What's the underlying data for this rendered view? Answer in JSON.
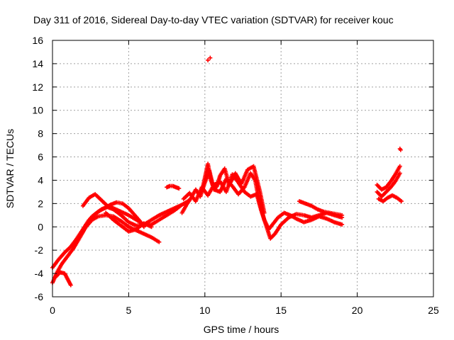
{
  "chart_data": {
    "type": "scatter",
    "title": "Day 311 of 2016, Sidereal Day-to-day VTEC variation (SDTVAR) for receiver kouc",
    "xlabel": "GPS time / hours",
    "ylabel": "SDTVAR / TECUs",
    "xlim": [
      0,
      25
    ],
    "ylim": [
      -6,
      16
    ],
    "xticks": [
      "0",
      "5",
      "10",
      "15",
      "20",
      "25"
    ],
    "yticks": [
      "-6",
      "-4",
      "-2",
      "0",
      "2",
      "4",
      "6",
      "8",
      "10",
      "12",
      "14",
      "16"
    ],
    "grid": true,
    "marker": "+",
    "series": [
      {
        "name": "SDTVAR",
        "color": "#ff0000",
        "tracks": [
          {
            "x": [
              0.0,
              0.3,
              0.6,
              1.0,
              1.4,
              1.8,
              2.2,
              2.6,
              3.0,
              3.5,
              4.0,
              4.5,
              5.0,
              5.5,
              6.0,
              6.5,
              7.0
            ],
            "y": [
              -4.8,
              -3.9,
              -3.2,
              -2.5,
              -1.8,
              -0.9,
              0.0,
              0.6,
              0.9,
              1.0,
              0.9,
              0.5,
              0.0,
              -0.3,
              -0.6,
              -0.9,
              -1.3
            ]
          },
          {
            "x": [
              0.0,
              0.4,
              0.8,
              1.2,
              1.6,
              2.0,
              2.4,
              2.8,
              3.2,
              3.6,
              4.0,
              4.5,
              5.0,
              5.5,
              6.0,
              6.5,
              7.0,
              7.5,
              8.0,
              8.5
            ],
            "y": [
              -3.5,
              -2.8,
              -2.2,
              -1.7,
              -1.0,
              -0.2,
              0.6,
              1.1,
              1.5,
              1.7,
              1.5,
              1.0,
              0.4,
              0.1,
              0.2,
              0.6,
              1.0,
              1.3,
              1.6,
              1.9
            ]
          },
          {
            "x": [
              0.2,
              0.5,
              0.8,
              1.0,
              1.2
            ],
            "y": [
              -4.3,
              -3.9,
              -4.0,
              -4.5,
              -5.0
            ]
          },
          {
            "x": [
              2.0,
              2.4,
              2.8,
              3.2,
              3.6,
              4.0,
              4.5,
              5.0,
              5.5,
              6.0,
              6.5,
              7.0,
              7.5,
              8.0,
              8.5,
              9.0
            ],
            "y": [
              1.8,
              2.5,
              2.8,
              2.3,
              1.8,
              1.6,
              1.3,
              1.0,
              0.6,
              0.2,
              0.2,
              0.6,
              1.0,
              1.4,
              1.9,
              2.3
            ]
          },
          {
            "x": [
              2.2,
              2.6,
              3.0,
              3.4,
              3.8,
              4.2,
              4.6,
              5.0,
              5.4,
              5.8,
              6.0
            ],
            "y": [
              0.2,
              0.9,
              1.3,
              1.6,
              1.9,
              2.1,
              2.0,
              1.6,
              1.0,
              0.4,
              0.0
            ]
          },
          {
            "x": [
              3.5,
              4.0,
              4.5,
              5.0,
              5.5,
              6.0,
              6.5
            ],
            "y": [
              1.2,
              0.6,
              0.1,
              -0.4,
              -0.2,
              0.3,
              0.0
            ]
          },
          {
            "x": [
              7.5,
              7.7,
              7.9,
              8.1,
              8.3
            ],
            "y": [
              3.4,
              3.5,
              3.5,
              3.4,
              3.3
            ]
          },
          {
            "x": [
              8.5,
              8.8,
              9.1,
              9.4,
              9.7,
              10.0,
              10.3,
              10.6,
              11.0,
              11.4,
              11.8,
              12.2,
              12.6,
              13.0,
              13.3,
              13.6,
              13.9,
              14.2,
              14.5,
              14.8,
              15.2,
              15.6,
              16.0,
              16.5,
              17.0,
              17.5,
              18.0,
              18.5,
              19.0
            ],
            "y": [
              1.2,
              1.9,
              2.5,
              3.2,
              2.6,
              3.8,
              4.8,
              3.2,
              3.0,
              4.1,
              3.5,
              2.8,
              3.4,
              4.6,
              4.0,
              2.0,
              0.6,
              -0.2,
              0.3,
              0.8,
              1.2,
              1.0,
              0.7,
              0.4,
              0.6,
              0.9,
              0.7,
              0.4,
              0.2
            ]
          },
          {
            "x": [
              8.6,
              9.0,
              9.4,
              9.8,
              10.2,
              10.6,
              11.0,
              11.4,
              11.8,
              12.2,
              12.6,
              13.0,
              13.4,
              13.7,
              14.0,
              14.3,
              14.6,
              15.0,
              15.5,
              16.0,
              16.5,
              17.0,
              17.5,
              18.0,
              18.5,
              19.0
            ],
            "y": [
              2.4,
              2.9,
              2.2,
              3.4,
              2.7,
              3.6,
              3.9,
              3.0,
              4.5,
              3.8,
              3.0,
              2.6,
              2.8,
              1.4,
              0.2,
              -1.0,
              -0.6,
              0.2,
              0.8,
              1.1,
              1.0,
              0.8,
              1.0,
              1.2,
              1.0,
              0.8
            ]
          },
          {
            "x": [
              9.8,
              10.0,
              10.2,
              10.4,
              10.6,
              10.8,
              11.0,
              11.3,
              11.6,
              12.0,
              12.4,
              12.8,
              13.2,
              13.6,
              13.9
            ],
            "y": [
              3.0,
              4.2,
              5.4,
              4.0,
              3.2,
              3.5,
              4.4,
              5.0,
              3.6,
              4.6,
              3.7,
              4.9,
              5.2,
              3.1,
              1.2
            ]
          },
          {
            "x": [
              16.2,
              16.6,
              17.0,
              17.4,
              17.8,
              18.2,
              18.6,
              19.0
            ],
            "y": [
              2.2,
              2.0,
              1.8,
              1.5,
              1.3,
              1.2,
              1.1,
              1.0
            ]
          },
          {
            "x": [
              21.3,
              21.6,
              21.9,
              22.2,
              22.5,
              22.8
            ],
            "y": [
              3.0,
              2.6,
              3.0,
              3.4,
              3.9,
              4.6
            ]
          },
          {
            "x": [
              21.4,
              21.7,
              22.0,
              22.3,
              22.6,
              22.9
            ],
            "y": [
              2.4,
              2.2,
              2.5,
              2.7,
              2.5,
              2.2
            ]
          },
          {
            "x": [
              21.3,
              21.6,
              21.9,
              22.2,
              22.5,
              22.8
            ],
            "y": [
              3.6,
              3.2,
              3.4,
              3.9,
              4.5,
              5.2
            ]
          }
        ],
        "outliers": [
          {
            "x": 10.2,
            "y": 14.3
          },
          {
            "x": 10.35,
            "y": 14.5
          },
          {
            "x": 22.8,
            "y": 6.7
          },
          {
            "x": 22.85,
            "y": 6.6
          }
        ]
      }
    ]
  }
}
